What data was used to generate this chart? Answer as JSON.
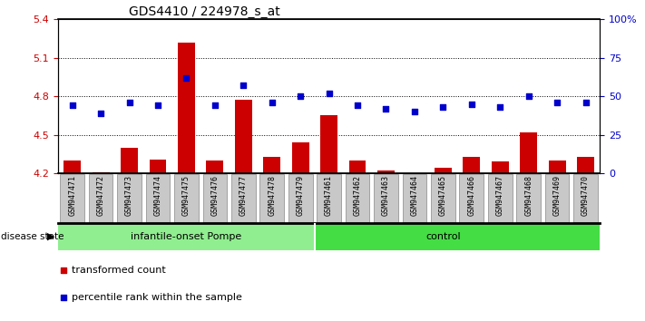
{
  "title": "GDS4410 / 224978_s_at",
  "samples": [
    "GSM947471",
    "GSM947472",
    "GSM947473",
    "GSM947474",
    "GSM947475",
    "GSM947476",
    "GSM947477",
    "GSM947478",
    "GSM947479",
    "GSM947461",
    "GSM947462",
    "GSM947463",
    "GSM947464",
    "GSM947465",
    "GSM947466",
    "GSM947467",
    "GSM947468",
    "GSM947469",
    "GSM947470"
  ],
  "transformed_count": [
    4.3,
    4.21,
    4.4,
    4.31,
    5.22,
    4.3,
    4.77,
    4.33,
    4.44,
    4.65,
    4.3,
    4.22,
    4.12,
    4.24,
    4.33,
    4.29,
    4.52,
    4.3,
    4.33
  ],
  "percentile_rank": [
    44,
    39,
    46,
    44,
    62,
    44,
    57,
    46,
    50,
    52,
    44,
    42,
    40,
    43,
    45,
    43,
    50,
    46,
    46
  ],
  "group1_label": "infantile-onset Pompe",
  "group1_count": 9,
  "group1_color": "#90EE90",
  "group2_label": "control",
  "group2_count": 10,
  "group2_color": "#44DD44",
  "ylim_left": [
    4.2,
    5.4
  ],
  "ylim_right": [
    0,
    100
  ],
  "yticks_left": [
    4.2,
    4.5,
    4.8,
    5.1,
    5.4
  ],
  "ytick_labels_left": [
    "4.2",
    "4.5",
    "4.8",
    "5.1",
    "5.4"
  ],
  "yticks_right": [
    0,
    25,
    50,
    75,
    100
  ],
  "ytick_labels_right": [
    "0",
    "25",
    "50",
    "75",
    "100%"
  ],
  "hlines": [
    4.5,
    4.8,
    5.1
  ],
  "bar_color": "#CC0000",
  "scatter_color": "#0000CC",
  "bar_width": 0.6,
  "legend_label_bar": "transformed count",
  "legend_label_scatter": "percentile rank within the sample",
  "disease_state_label": "disease state",
  "xtick_bg_color": "#C8C8C8",
  "xtick_border_color": "#888888"
}
